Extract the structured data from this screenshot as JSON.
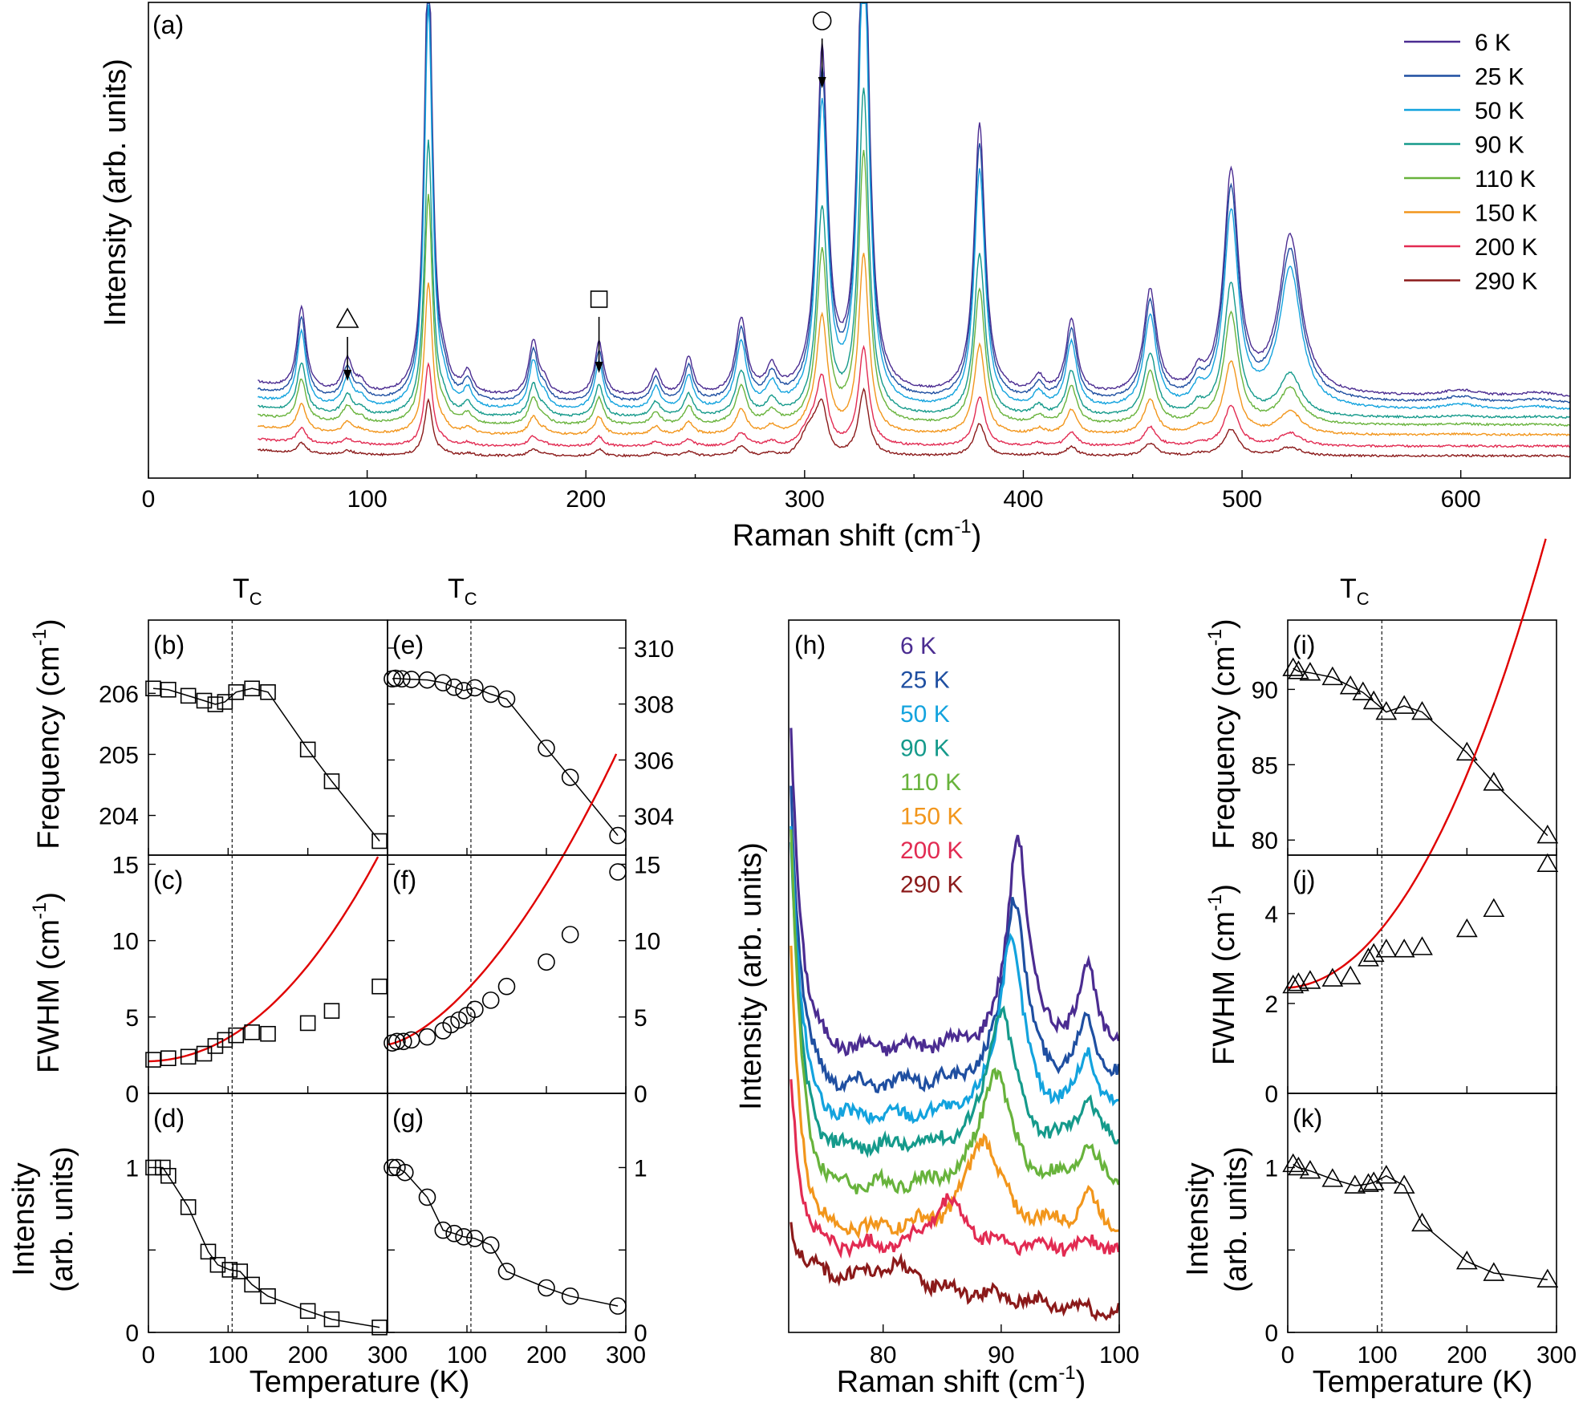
{
  "chart_data": [
    {
      "id": "a",
      "type": "line",
      "panel_label": "(a)",
      "xlabel": "Raman shift (cm",
      "xlabel_sup": "-1",
      "xlabel_tail": ")",
      "ylabel": "Intensity (arb. units)",
      "xlim": [
        0,
        650
      ],
      "xticks": [
        0,
        100,
        200,
        300,
        400,
        500,
        600
      ],
      "x_start": 50,
      "peaks": [
        [
          70,
          2.0,
          2.5
        ],
        [
          91,
          0.8,
          2.6
        ],
        [
          97,
          0.25,
          3
        ],
        [
          128,
          11.0,
          2.2
        ],
        [
          135,
          0.4,
          2.5
        ],
        [
          146,
          0.5,
          2.5
        ],
        [
          176,
          1.3,
          2.5
        ],
        [
          181,
          0.3,
          2.5
        ],
        [
          206,
          1.3,
          2.4
        ],
        [
          232,
          0.6,
          2.5
        ],
        [
          247,
          0.9,
          2.5
        ],
        [
          271,
          1.8,
          3
        ],
        [
          285,
          0.6,
          3
        ],
        [
          308,
          8.2,
          3
        ],
        [
          327,
          13.0,
          2.8
        ],
        [
          380,
          6.5,
          3
        ],
        [
          407,
          0.4,
          3
        ],
        [
          422,
          1.8,
          3
        ],
        [
          458,
          2.5,
          3.5
        ],
        [
          480,
          0.4,
          3
        ],
        [
          495,
          5.3,
          4
        ],
        [
          522,
          3.8,
          6
        ],
        [
          600,
          0.15,
          10
        ],
        [
          635,
          0.1,
          10
        ]
      ],
      "series": [
        {
          "name": "6 K",
          "color": "#4b2c91",
          "offset": 1.62,
          "amp": 1.0
        },
        {
          "name": "25 K",
          "color": "#1f4fa1",
          "offset": 1.47,
          "amp": 0.95
        },
        {
          "name": "50 K",
          "color": "#13a3de",
          "offset": 1.3,
          "amp": 0.88
        },
        {
          "name": "90 K",
          "color": "#159a8b",
          "offset": 1.13,
          "amp": 0.6
        },
        {
          "name": "110 K",
          "color": "#68b33c",
          "offset": 0.95,
          "amp": 0.5
        },
        {
          "name": "150 K",
          "color": "#f2961c",
          "offset": 0.72,
          "amp": 0.33
        },
        {
          "name": "200 K",
          "color": "#e22b52",
          "offset": 0.45,
          "amp": 0.18
        },
        {
          "name": "290 K",
          "color": "#8b1a1a",
          "offset": 0.22,
          "amp": 0.12
        }
      ],
      "markers": [
        {
          "symbol": "triangle",
          "x": 91
        },
        {
          "symbol": "square",
          "x": 206
        },
        {
          "symbol": "circle",
          "x": 308
        }
      ]
    },
    {
      "id": "b",
      "type": "scatter",
      "panel_label": "(b)",
      "marker": "square",
      "ylabel": "Frequency (cm",
      "ylabel_sup": "-1",
      "ylabel_tail": ")",
      "xlim": [
        0,
        300
      ],
      "ylim": [
        203.35,
        207.2
      ],
      "yticks": [
        204,
        205,
        206
      ],
      "x": [
        6,
        25,
        50,
        70,
        84,
        96,
        110,
        130,
        150,
        200,
        230,
        290
      ],
      "y": [
        206.08,
        206.06,
        205.96,
        205.88,
        205.82,
        205.86,
        206.02,
        206.08,
        206.02,
        205.08,
        204.56,
        203.58
      ]
    },
    {
      "id": "e",
      "type": "scatter",
      "panel_label": "(e)",
      "marker": "circle",
      "xlim": [
        0,
        300
      ],
      "ylim": [
        302.6,
        311.0
      ],
      "yticks": [
        304,
        306,
        308,
        310
      ],
      "right_axis": true,
      "x": [
        6,
        10,
        18,
        30,
        50,
        70,
        84,
        96,
        110,
        130,
        150,
        200,
        230,
        290
      ],
      "y": [
        308.9,
        308.92,
        308.9,
        308.88,
        308.86,
        308.76,
        308.6,
        308.48,
        308.58,
        308.35,
        308.18,
        306.42,
        305.38,
        303.3
      ]
    },
    {
      "id": "c",
      "type": "scatter",
      "panel_label": "(c)",
      "marker": "square",
      "ylabel": "FWHM (cm",
      "ylabel_sup": "-1",
      "ylabel_tail": ")",
      "xlim": [
        0,
        300
      ],
      "ylim": [
        0,
        15.6
      ],
      "yticks": [
        0,
        5,
        10,
        15
      ],
      "x": [
        6,
        25,
        50,
        70,
        84,
        96,
        110,
        130,
        150,
        200,
        230,
        290
      ],
      "y": [
        2.2,
        2.3,
        2.4,
        2.6,
        3.1,
        3.5,
        3.8,
        4.0,
        3.9,
        4.6,
        5.4,
        7.0
      ],
      "fit": {
        "a": 2.1,
        "b": 0.4,
        "c": 1.0,
        "T0": 90
      }
    },
    {
      "id": "f",
      "type": "scatter",
      "panel_label": "(f)",
      "marker": "circle",
      "xlim": [
        0,
        300
      ],
      "ylim": [
        0,
        15.6
      ],
      "yticks": [
        0,
        5,
        10,
        15
      ],
      "right_axis": true,
      "x": [
        6,
        12,
        20,
        30,
        50,
        70,
        80,
        90,
        100,
        110,
        130,
        150,
        200,
        230,
        290
      ],
      "y": [
        3.3,
        3.4,
        3.4,
        3.5,
        3.7,
        4.1,
        4.5,
        4.8,
        5.1,
        5.5,
        6.1,
        7.0,
        8.6,
        10.4,
        14.5
      ],
      "fit": {
        "a": 3.2,
        "b": 3.0,
        "c": 1.0,
        "T0": 160
      }
    },
    {
      "id": "d",
      "type": "scatter",
      "panel_label": "(d)",
      "marker": "square",
      "ylabel": "Intensity",
      "ylabel2": "(arb. units)",
      "xlabel": "Temperature (K)",
      "xlim": [
        0,
        300
      ],
      "xticks": [
        0,
        100,
        200,
        300
      ],
      "ylim": [
        0,
        1.45
      ],
      "yticks": [
        0,
        0.5,
        1
      ],
      "yticklabels": [
        "0",
        "",
        "1"
      ],
      "x": [
        6,
        18,
        25,
        50,
        75,
        87,
        102,
        115,
        130,
        150,
        200,
        230,
        290
      ],
      "y": [
        1.0,
        1.0,
        0.95,
        0.76,
        0.49,
        0.41,
        0.38,
        0.37,
        0.29,
        0.22,
        0.13,
        0.08,
        0.03
      ]
    },
    {
      "id": "g",
      "type": "scatter",
      "panel_label": "(g)",
      "marker": "circle",
      "xlim": [
        0,
        300
      ],
      "xticks": [
        0,
        100,
        200,
        300
      ],
      "ylim": [
        0,
        1.45
      ],
      "yticks": [
        0,
        0.5,
        1
      ],
      "yticklabels": [
        "0",
        "",
        "1"
      ],
      "right_axis": true,
      "x": [
        6,
        12,
        22,
        50,
        70,
        84,
        96,
        110,
        130,
        150,
        200,
        230,
        290
      ],
      "y": [
        1.0,
        1.0,
        0.97,
        0.82,
        0.62,
        0.6,
        0.58,
        0.57,
        0.53,
        0.37,
        0.27,
        0.22,
        0.16
      ]
    },
    {
      "id": "h",
      "type": "line",
      "panel_label": "(h)",
      "xlabel": "Raman shift (cm",
      "xlabel_sup": "-1",
      "xlabel_tail": ")",
      "ylabel": "Intensity (arb. units)",
      "xlim": [
        72,
        100
      ],
      "xticks": [
        80,
        90,
        100
      ],
      "series": [
        {
          "name": "6 K",
          "color": "#4b2c91",
          "base": 0.74,
          "peakx": 91.4,
          "peakh": 0.56,
          "start": 1.58
        },
        {
          "name": "25 K",
          "color": "#1f4fa1",
          "base": 0.645,
          "peakx": 91.1,
          "peakh": 0.49,
          "start": 1.42
        },
        {
          "name": "50 K",
          "color": "#13a3de",
          "base": 0.56,
          "peakx": 90.8,
          "peakh": 0.46,
          "start": 1.33
        },
        {
          "name": "90 K",
          "color": "#159a8b",
          "base": 0.48,
          "peakx": 90.0,
          "peakh": 0.36,
          "start": 1.26
        },
        {
          "name": "110 K",
          "color": "#68b33c",
          "base": 0.38,
          "peakx": 89.5,
          "peakh": 0.3,
          "start": 1.3
        },
        {
          "name": "150 K",
          "color": "#f2961c",
          "base": 0.27,
          "peakx": 88.5,
          "peakh": 0.24,
          "start": 0.98
        },
        {
          "name": "200 K",
          "color": "#e22b52",
          "base": 0.22,
          "peakx": 85.5,
          "peakh": 0.12,
          "start": 0.66
        },
        {
          "name": "290 K",
          "color": "#8b1a1a",
          "base": 0.13,
          "peakx": 81.0,
          "peakh": 0.05,
          "start": 0.25
        }
      ]
    },
    {
      "id": "i",
      "type": "scatter",
      "panel_label": "(i)",
      "marker": "triangle",
      "ylabel": "Frequency (cm",
      "ylabel_sup": "-1",
      "ylabel_tail": ")",
      "xlim": [
        0,
        300
      ],
      "ylim": [
        79.0,
        94.6
      ],
      "yticks": [
        80,
        85,
        90
      ],
      "x": [
        6,
        12,
        25,
        50,
        70,
        84,
        96,
        110,
        130,
        150,
        200,
        230,
        290
      ],
      "y": [
        91.4,
        91.2,
        91.1,
        90.8,
        90.2,
        89.8,
        89.2,
        88.5,
        88.9,
        88.5,
        85.8,
        83.8,
        80.3
      ]
    },
    {
      "id": "j",
      "type": "scatter",
      "panel_label": "(j)",
      "marker": "triangle",
      "ylabel": "FWHM (cm",
      "ylabel_sup": "-1",
      "ylabel_tail": ")",
      "xlim": [
        0,
        300
      ],
      "ylim": [
        0,
        5.3
      ],
      "yticks": [
        0,
        2,
        4
      ],
      "x": [
        6,
        12,
        25,
        50,
        70,
        90,
        96,
        110,
        130,
        150,
        200,
        230,
        290
      ],
      "y": [
        2.4,
        2.45,
        2.5,
        2.55,
        2.6,
        3.0,
        3.1,
        3.2,
        3.2,
        3.25,
        3.65,
        4.1,
        5.1
      ],
      "fit": {
        "a": 2.35,
        "b": 0.4,
        "c": 0.9,
        "T0": 110
      }
    },
    {
      "id": "k",
      "type": "scatter",
      "panel_label": "(k)",
      "marker": "triangle",
      "ylabel": "Intensity",
      "ylabel2": "(arb. units)",
      "xlabel": "Temperature (K)",
      "xlim": [
        0,
        300
      ],
      "xticks": [
        0,
        100,
        200,
        300
      ],
      "ylim": [
        0,
        1.45
      ],
      "yticks": [
        0,
        0.5,
        1
      ],
      "yticklabels": [
        "0",
        "",
        "1"
      ],
      "x": [
        6,
        12,
        25,
        50,
        75,
        90,
        96,
        110,
        130,
        150,
        200,
        230,
        290
      ],
      "y": [
        1.02,
        1.0,
        0.98,
        0.93,
        0.89,
        0.9,
        0.91,
        0.95,
        0.89,
        0.66,
        0.43,
        0.36,
        0.32
      ]
    }
  ],
  "tc": {
    "label": "T",
    "sub": "C",
    "value": 105
  },
  "colors": {
    "fit": "#e00000",
    "axis": "#000000"
  }
}
